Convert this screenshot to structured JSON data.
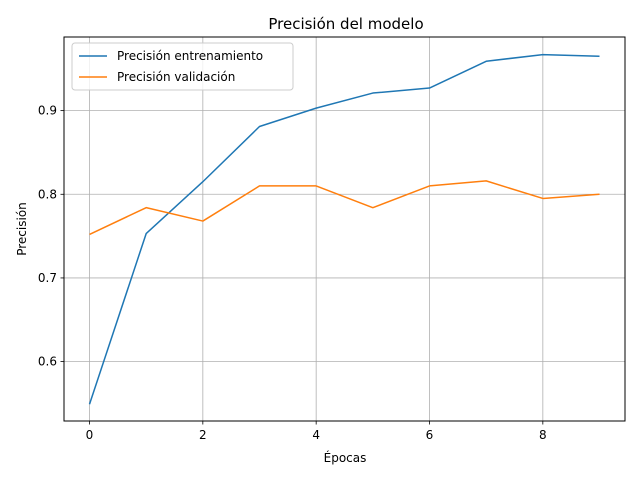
{
  "chart_data": {
    "type": "line",
    "title": "Precisión del modelo",
    "xlabel": "Épocas",
    "ylabel": "Precisión",
    "x": [
      0,
      1,
      2,
      3,
      4,
      5,
      6,
      7,
      8,
      9
    ],
    "series": [
      {
        "name": "Precisión entrenamiento",
        "color": "#1f77b4",
        "values": [
          0.549,
          0.753,
          0.815,
          0.881,
          0.903,
          0.921,
          0.927,
          0.959,
          0.967,
          0.965
        ]
      },
      {
        "name": "Precisión validación",
        "color": "#ff7f0e",
        "values": [
          0.752,
          0.784,
          0.768,
          0.81,
          0.81,
          0.784,
          0.81,
          0.816,
          0.795,
          0.8
        ]
      }
    ],
    "xlim": [
      -0.45,
      9.45
    ],
    "ylim": [
      0.529,
      0.988
    ],
    "x_ticks": [
      0,
      2,
      4,
      6,
      8
    ],
    "y_ticks": [
      0.6,
      0.7,
      0.8,
      0.9
    ],
    "x_tick_labels": [
      "0",
      "2",
      "4",
      "6",
      "8"
    ],
    "y_tick_labels": [
      "0.6",
      "0.7",
      "0.8",
      "0.9"
    ],
    "grid": true,
    "legend_position": "top-left"
  }
}
